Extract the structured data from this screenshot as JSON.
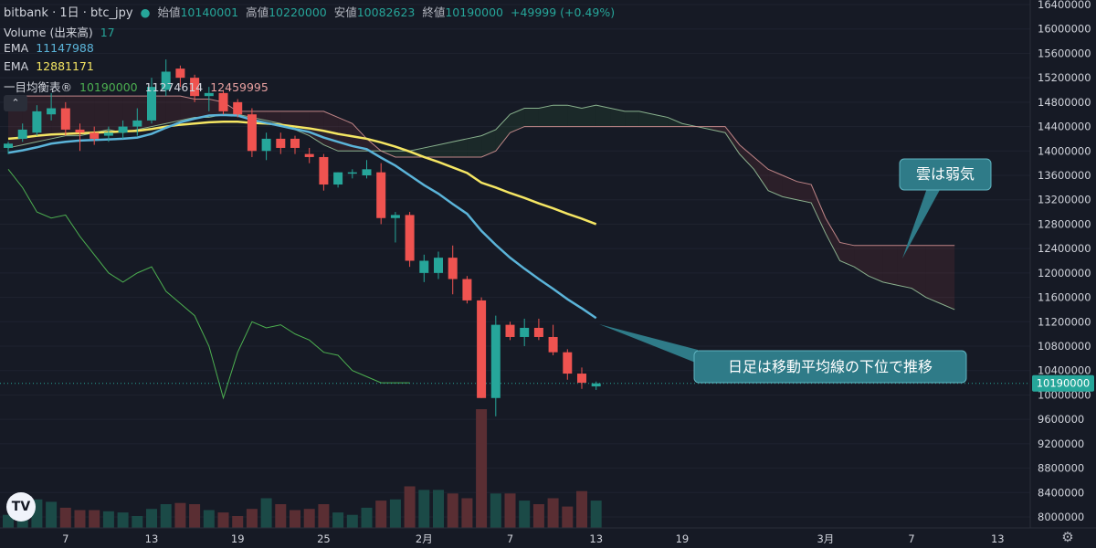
{
  "header": {
    "symbol": "bitbank · 1日 · btc_jpy",
    "open_label": "始値",
    "open": "10140001",
    "high_label": "高値",
    "high": "10220000",
    "low_label": "安値",
    "low": "10082623",
    "close_label": "終値",
    "close": "10190000",
    "change": "+49999 (+0.49%)"
  },
  "indicators": {
    "volume_label": "Volume (出来高)",
    "volume_value": "17",
    "ema1_label": "EMA",
    "ema1_value": "11147988",
    "ema2_label": "EMA",
    "ema2_value": "12881171",
    "ichimoku_label": "一目均衡表®",
    "ichimoku_v1": "10190000",
    "ichimoku_v2": "11274614",
    "ichimoku_v3": "12459995"
  },
  "colors": {
    "background": "#161a25",
    "up": "#26a69a",
    "down": "#ef5350",
    "ema_fast": "#5bb4d9",
    "ema_slow": "#f5e663",
    "cloud_line_a": "#a5d6a7",
    "cloud_line_b": "#e8a0a0",
    "lagging": "#4caf50",
    "callout": "#2f7b88"
  },
  "icons": {
    "collapse": "chevron-up-icon",
    "logo": "tradingview-logo-icon",
    "settings": "gear-icon",
    "symbol_status": "dot-icon"
  },
  "annotations": [
    {
      "text": "雲は弱気"
    },
    {
      "text": "日足は移動平均線の下位で推移"
    }
  ],
  "chart_data": {
    "type": "candlestick",
    "y_axis_ticks": [
      16400000,
      16000000,
      15600000,
      15200000,
      14800000,
      14400000,
      14000000,
      13600000,
      13200000,
      12800000,
      12400000,
      12000000,
      11600000,
      11200000,
      10800000,
      10400000,
      10000000,
      9600000,
      9200000,
      8800000,
      8400000,
      8000000
    ],
    "ylim": [
      7900000,
      16550000
    ],
    "x_axis_ticks": [
      "7",
      "13",
      "19",
      "25",
      "2月",
      "7",
      "13",
      "19",
      "3月",
      "7",
      "13"
    ],
    "last_price_label": "10190000",
    "candles": [
      {
        "o": 14050000,
        "h": 14150000,
        "l": 13950000,
        "c": 14120000
      },
      {
        "o": 14200000,
        "h": 14450000,
        "l": 14150000,
        "c": 14350000
      },
      {
        "o": 14300000,
        "h": 14750000,
        "l": 14250000,
        "c": 14650000
      },
      {
        "o": 14600000,
        "h": 14950000,
        "l": 14500000,
        "c": 14700000
      },
      {
        "o": 14700000,
        "h": 14800000,
        "l": 14250000,
        "c": 14350000
      },
      {
        "o": 14350000,
        "h": 14450000,
        "l": 14000000,
        "c": 14300000
      },
      {
        "o": 14300000,
        "h": 14400000,
        "l": 14100000,
        "c": 14200000
      },
      {
        "o": 14250000,
        "h": 14400000,
        "l": 14150000,
        "c": 14300000
      },
      {
        "o": 14300000,
        "h": 14500000,
        "l": 14200000,
        "c": 14400000
      },
      {
        "o": 14400000,
        "h": 14700000,
        "l": 14250000,
        "c": 14500000
      },
      {
        "o": 14500000,
        "h": 15200000,
        "l": 14450000,
        "c": 15050000
      },
      {
        "o": 15000000,
        "h": 15500000,
        "l": 14900000,
        "c": 15300000
      },
      {
        "o": 15350000,
        "h": 15400000,
        "l": 15050000,
        "c": 15200000
      },
      {
        "o": 15200000,
        "h": 15250000,
        "l": 14800000,
        "c": 14900000
      },
      {
        "o": 14900000,
        "h": 15050000,
        "l": 14650000,
        "c": 14950000
      },
      {
        "o": 14950000,
        "h": 15000000,
        "l": 14600000,
        "c": 14650000
      },
      {
        "o": 14800000,
        "h": 14850000,
        "l": 14550000,
        "c": 14600000
      },
      {
        "o": 14600000,
        "h": 14700000,
        "l": 13900000,
        "c": 14000000
      },
      {
        "o": 14000000,
        "h": 14300000,
        "l": 13850000,
        "c": 14200000
      },
      {
        "o": 14200000,
        "h": 14300000,
        "l": 13950000,
        "c": 14050000
      },
      {
        "o": 14200000,
        "h": 14250000,
        "l": 13950000,
        "c": 14050000
      },
      {
        "o": 13950000,
        "h": 14050000,
        "l": 13800000,
        "c": 13900000
      },
      {
        "o": 13900000,
        "h": 13950000,
        "l": 13350000,
        "c": 13450000
      },
      {
        "o": 13450000,
        "h": 13650000,
        "l": 13400000,
        "c": 13650000
      },
      {
        "o": 13650000,
        "h": 13700000,
        "l": 13550000,
        "c": 13650000
      },
      {
        "o": 13600000,
        "h": 13850000,
        "l": 13550000,
        "c": 13700000
      },
      {
        "o": 13650000,
        "h": 13800000,
        "l": 12800000,
        "c": 12900000
      },
      {
        "o": 12900000,
        "h": 13000000,
        "l": 12500000,
        "c": 12950000
      },
      {
        "o": 12950000,
        "h": 13000000,
        "l": 12100000,
        "c": 12200000
      },
      {
        "o": 12000000,
        "h": 12300000,
        "l": 11850000,
        "c": 12200000
      },
      {
        "o": 12000000,
        "h": 12350000,
        "l": 11900000,
        "c": 12250000
      },
      {
        "o": 12250000,
        "h": 12450000,
        "l": 11650000,
        "c": 11900000
      },
      {
        "o": 11900000,
        "h": 11950000,
        "l": 11500000,
        "c": 11550000
      },
      {
        "o": 11550000,
        "h": 11600000,
        "l": 9950000,
        "c": 9950000
      },
      {
        "o": 9950000,
        "h": 11300000,
        "l": 9650000,
        "c": 11150000
      },
      {
        "o": 11150000,
        "h": 11200000,
        "l": 10900000,
        "c": 10950000
      },
      {
        "o": 10950000,
        "h": 11250000,
        "l": 10800000,
        "c": 11100000
      },
      {
        "o": 11100000,
        "h": 11250000,
        "l": 10900000,
        "c": 10950000
      },
      {
        "o": 10950000,
        "h": 11150000,
        "l": 10650000,
        "c": 10700000
      },
      {
        "o": 10700000,
        "h": 10750000,
        "l": 10250000,
        "c": 10350000
      },
      {
        "o": 10350000,
        "h": 10450000,
        "l": 10100000,
        "c": 10200000
      },
      {
        "o": 10140001,
        "h": 10220000,
        "l": 10082623,
        "c": 10190000
      }
    ],
    "volume": [
      0.22,
      0.42,
      0.48,
      0.44,
      0.34,
      0.3,
      0.3,
      0.28,
      0.26,
      0.2,
      0.32,
      0.4,
      0.42,
      0.4,
      0.3,
      0.26,
      0.2,
      0.32,
      0.5,
      0.4,
      0.3,
      0.32,
      0.4,
      0.26,
      0.22,
      0.34,
      0.46,
      0.48,
      0.7,
      0.64,
      0.64,
      0.58,
      0.5,
      1.0,
      0.58,
      0.58,
      0.46,
      0.4,
      0.5,
      0.36,
      0.62,
      0.46
    ],
    "ema_fast": [
      13970000,
      14010000,
      14060000,
      14120000,
      14150000,
      14170000,
      14180000,
      14190000,
      14200000,
      14220000,
      14280000,
      14380000,
      14470000,
      14530000,
      14580000,
      14590000,
      14580000,
      14510000,
      14460000,
      14410000,
      14360000,
      14310000,
      14220000,
      14150000,
      14080000,
      14030000,
      13890000,
      13760000,
      13600000,
      13440000,
      13300000,
      13130000,
      12970000,
      12690000,
      12460000,
      12250000,
      12070000,
      11900000,
      11740000,
      11570000,
      11420000,
      11260000
    ],
    "ema_slow": [
      14200000,
      14220000,
      14250000,
      14270000,
      14280000,
      14290000,
      14300000,
      14310000,
      14320000,
      14330000,
      14360000,
      14400000,
      14430000,
      14450000,
      14470000,
      14480000,
      14480000,
      14460000,
      14450000,
      14430000,
      14400000,
      14370000,
      14330000,
      14280000,
      14240000,
      14200000,
      14140000,
      14070000,
      13990000,
      13900000,
      13820000,
      13730000,
      13640000,
      13480000,
      13400000,
      13310000,
      13230000,
      13140000,
      13060000,
      12970000,
      12890000,
      12800000
    ],
    "senkou_a": [
      14050000,
      14100000,
      14150000,
      14200000,
      14250000,
      14250000,
      14300000,
      14350000,
      14300000,
      14350000,
      14400000,
      14450000,
      14500000,
      14550000,
      14550000,
      14600000,
      14600000,
      14550000,
      14500000,
      14450000,
      14350000,
      14250000,
      14100000,
      14000000,
      14000000,
      14000000,
      14000000,
      14000000,
      14000000,
      14050000,
      14100000,
      14150000,
      14200000,
      14250000,
      14350000,
      14600000,
      14700000,
      14700000,
      14750000,
      14750000,
      14700000,
      14750000,
      14700000,
      14650000,
      14650000,
      14600000,
      14550000,
      14450000,
      14400000,
      14350000,
      14300000,
      13950000,
      13700000,
      13350000,
      13250000,
      13200000,
      13150000,
      12650000,
      12200000,
      12100000,
      11950000,
      11850000,
      11800000,
      11750000,
      11600000,
      11500000,
      11400000
    ],
    "senkou_b": [
      14900000,
      14900000,
      14900000,
      14900000,
      14900000,
      14900000,
      14900000,
      14900000,
      14900000,
      14900000,
      14900000,
      14900000,
      14900000,
      14850000,
      14850000,
      14800000,
      14650000,
      14650000,
      14650000,
      14650000,
      14650000,
      14650000,
      14650000,
      14550000,
      14450000,
      14200000,
      14000000,
      13900000,
      13900000,
      13900000,
      13900000,
      13900000,
      13900000,
      13900000,
      14000000,
      14300000,
      14400000,
      14400000,
      14400000,
      14400000,
      14400000,
      14400000,
      14400000,
      14400000,
      14400000,
      14400000,
      14400000,
      14400000,
      14400000,
      14400000,
      14400000,
      14100000,
      13900000,
      13700000,
      13600000,
      13500000,
      13450000,
      12900000,
      12500000,
      12450000,
      12450000,
      12450000,
      12450000,
      12450000,
      12450000,
      12450000,
      12450000
    ],
    "lagging": [
      13700000,
      13400000,
      13000000,
      12900000,
      12950000,
      12600000,
      12300000,
      12000000,
      11850000,
      12000000,
      12100000,
      11700000,
      11500000,
      11300000,
      10800000,
      9950000,
      10700000,
      11200000,
      11100000,
      11150000,
      11000000,
      10900000,
      10700000,
      10650000,
      10400000,
      10300000,
      10200000,
      10200000,
      10200000
    ]
  }
}
